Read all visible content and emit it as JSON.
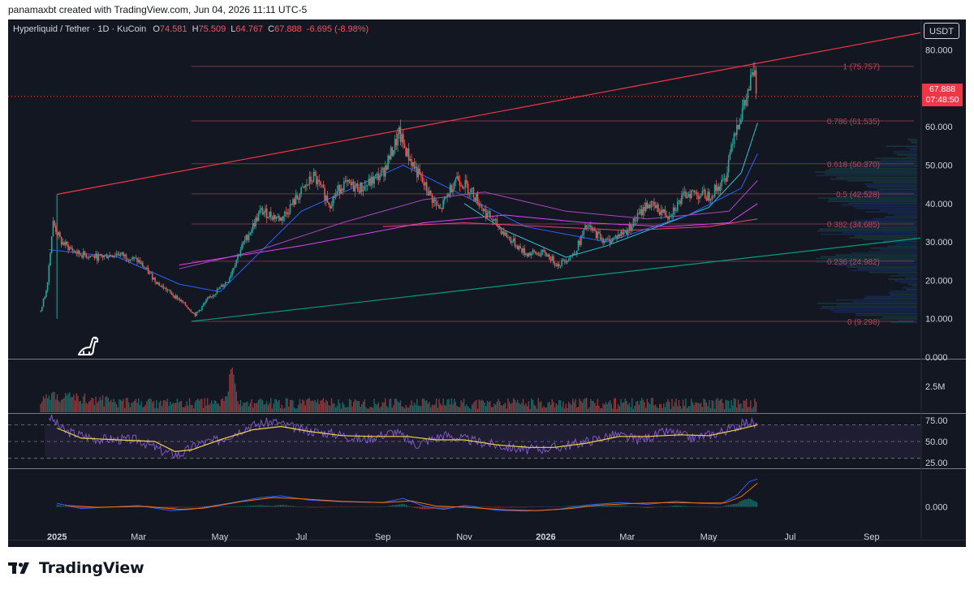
{
  "header": {
    "attribution": "panamaxbt created with TradingView.com, Jun 04, 2026 11:11 UTC-5"
  },
  "legend": {
    "symbol": "Hyperliquid / Tether · 1D · KuCoin",
    "o_label": "O",
    "o": "74.581",
    "h_label": "H",
    "h": "75.509",
    "l_label": "L",
    "l": "64.767",
    "c_label": "C",
    "c": "67.888",
    "change": "-6.695 (-8.98%)"
  },
  "currency": "USDT",
  "last_price": {
    "price": "67.888",
    "countdown": "07:48:50"
  },
  "footer": {
    "brand": "TradingView"
  },
  "colors": {
    "background": "#131722",
    "up": "#26a69a",
    "down": "#ef5350",
    "resistance_line": "#f23645",
    "support_line": "#089981",
    "fib_line": "#7a3345",
    "rsi": "#7e57c2",
    "rsi_ma": "#f0d34a",
    "macd": "#2962ff",
    "macd_signal": "#ff6d00"
  },
  "chart_data": [
    {
      "type": "candlestick",
      "panel": "price",
      "title": "Hyperliquid / Tether · 1D · KuCoin",
      "y_ticks": [
        "0.000",
        "10.000",
        "20.000",
        "30.000",
        "40.000",
        "50.000",
        "60.000",
        "70.000",
        "80.000"
      ],
      "ylim": [
        0,
        85
      ],
      "x_ticks": [
        "2025",
        "Mar",
        "May",
        "Jul",
        "Sep",
        "Nov",
        "2026",
        "Mar",
        "May",
        "Jul",
        "Sep"
      ],
      "x_tick_months": [
        0,
        2,
        4,
        6,
        8,
        10,
        12,
        14,
        16,
        18,
        20
      ],
      "xlim_months": [
        -1.2,
        21.2
      ],
      "grid": false,
      "price_path": [
        [
          -0.4,
          12
        ],
        [
          -0.25,
          18
        ],
        [
          -0.1,
          35
        ],
        [
          0.1,
          30
        ],
        [
          0.5,
          27
        ],
        [
          1.0,
          26
        ],
        [
          1.5,
          27
        ],
        [
          2.0,
          25
        ],
        [
          2.5,
          19
        ],
        [
          3.0,
          15
        ],
        [
          3.4,
          11
        ],
        [
          3.7,
          15
        ],
        [
          4.2,
          20
        ],
        [
          4.5,
          28
        ],
        [
          5.0,
          38
        ],
        [
          5.5,
          36
        ],
        [
          6.0,
          43
        ],
        [
          6.3,
          47
        ],
        [
          6.7,
          40
        ],
        [
          7.0,
          45
        ],
        [
          7.5,
          44
        ],
        [
          8.0,
          48
        ],
        [
          8.4,
          58
        ],
        [
          8.6,
          53
        ],
        [
          9.0,
          45
        ],
        [
          9.4,
          38
        ],
        [
          9.8,
          47
        ],
        [
          10.2,
          43
        ],
        [
          10.5,
          38
        ],
        [
          11.0,
          32
        ],
        [
          11.5,
          27
        ],
        [
          12.0,
          27
        ],
        [
          12.3,
          24
        ],
        [
          12.7,
          27
        ],
        [
          13.0,
          34
        ],
        [
          13.5,
          30
        ],
        [
          14.0,
          33
        ],
        [
          14.5,
          40
        ],
        [
          15.0,
          37
        ],
        [
          15.5,
          43
        ],
        [
          16.0,
          42
        ],
        [
          16.4,
          46
        ],
        [
          16.6,
          58
        ],
        [
          16.9,
          66
        ],
        [
          17.1,
          74.58
        ],
        [
          17.2,
          67.888
        ]
      ],
      "resistance_line": {
        "from": [
          0.0,
          42.4
        ],
        "to": [
          21.2,
          84.5
        ]
      },
      "support_line": {
        "from": [
          3.3,
          9.3
        ],
        "to": [
          21.2,
          31.0
        ]
      },
      "fib_levels": [
        {
          "ratio": "0",
          "price": 9.298,
          "label": "0 (9.298)"
        },
        {
          "ratio": "0.236",
          "price": 24.982,
          "label": "0.236 (24.982)"
        },
        {
          "ratio": "0.382",
          "price": 34.685,
          "label": "0.382 (34.685)"
        },
        {
          "ratio": "0.5",
          "price": 42.528,
          "label": "0.5 (42.528)"
        },
        {
          "ratio": "0.618",
          "price": 50.37,
          "label": "0.618 (50.370)"
        },
        {
          "ratio": "0.786",
          "price": 61.535,
          "label": "0.786 (61.535)"
        },
        {
          "ratio": "1",
          "price": 75.757,
          "label": "1 (75.757)"
        }
      ],
      "moving_averages": [
        {
          "color": "#26c6da",
          "points": [
            [
              10.0,
              40
            ],
            [
              11.0,
              33
            ],
            [
              12.5,
              26
            ],
            [
              13.5,
              29
            ],
            [
              15.0,
              35
            ],
            [
              16.0,
              39
            ],
            [
              16.8,
              48
            ],
            [
              17.2,
              61
            ]
          ]
        },
        {
          "color": "#2962ff",
          "points": [
            [
              -0.2,
              28
            ],
            [
              1.5,
              26
            ],
            [
              3.0,
              19
            ],
            [
              4.0,
              17
            ],
            [
              6.0,
              38
            ],
            [
              8.5,
              50
            ],
            [
              10.0,
              42
            ],
            [
              11.5,
              34
            ],
            [
              13.5,
              30
            ],
            [
              15.5,
              37
            ],
            [
              16.8,
              44
            ],
            [
              17.2,
              53
            ]
          ]
        },
        {
          "color": "#ab47bc",
          "points": [
            [
              3.0,
              23
            ],
            [
              5.0,
              28
            ],
            [
              7.0,
              35
            ],
            [
              9.0,
              41
            ],
            [
              10.5,
              43
            ],
            [
              12.5,
              38
            ],
            [
              14.5,
              36
            ],
            [
              16.5,
              38
            ],
            [
              17.2,
              46
            ]
          ]
        },
        {
          "color": "#e040fb",
          "points": [
            [
              3.0,
              24
            ],
            [
              6.0,
              29
            ],
            [
              9.0,
              35
            ],
            [
              11.0,
              37
            ],
            [
              13.0,
              35
            ],
            [
              15.0,
              34
            ],
            [
              16.5,
              35
            ],
            [
              17.2,
              40
            ]
          ]
        },
        {
          "color": "#ec407a",
          "points": [
            [
              8.0,
              34
            ],
            [
              10.0,
              35
            ],
            [
              12.0,
              34
            ],
            [
              14.0,
              33
            ],
            [
              16.0,
              34
            ],
            [
              17.2,
              36
            ]
          ]
        }
      ],
      "volume_profile": {
        "range": [
          9,
          57
        ],
        "peak_prices": [
          13,
          25,
          33,
          41,
          48
        ]
      }
    },
    {
      "type": "bar",
      "panel": "volume",
      "y_ticks": [
        "2.5M"
      ],
      "note_peak_month": 4.3
    },
    {
      "type": "line",
      "panel": "rsi",
      "y_ticks": [
        "75.00",
        "50.00",
        "25.00"
      ],
      "ylim": [
        20,
        82
      ],
      "bands": [
        30,
        70
      ],
      "series": [
        {
          "points": [
            [
              -0.2,
              80
            ],
            [
              0.2,
              62
            ],
            [
              1.0,
              53
            ],
            [
              2.0,
              52
            ],
            [
              2.6,
              38
            ],
            [
              3.0,
              34
            ],
            [
              3.5,
              48
            ],
            [
              4.0,
              52
            ],
            [
              4.7,
              68
            ],
            [
              5.3,
              74
            ],
            [
              6.0,
              64
            ],
            [
              7.0,
              58
            ],
            [
              7.5,
              52
            ],
            [
              8.3,
              62
            ],
            [
              8.8,
              46
            ],
            [
              9.5,
              58
            ],
            [
              10.3,
              50
            ],
            [
              11.0,
              44
            ],
            [
              11.5,
              40
            ],
            [
              12.3,
              43
            ],
            [
              13.0,
              50
            ],
            [
              13.7,
              58
            ],
            [
              14.3,
              52
            ],
            [
              15.0,
              62
            ],
            [
              15.6,
              54
            ],
            [
              16.2,
              60
            ],
            [
              16.7,
              68
            ],
            [
              17.0,
              74
            ],
            [
              17.2,
              68
            ]
          ]
        },
        {
          "points": [
            [
              0.0,
              66
            ],
            [
              0.6,
              54
            ],
            [
              1.5,
              52
            ],
            [
              2.4,
              50
            ],
            [
              2.9,
              38
            ],
            [
              3.3,
              40
            ],
            [
              4.0,
              52
            ],
            [
              4.8,
              64
            ],
            [
              5.5,
              68
            ],
            [
              6.2,
              62
            ],
            [
              7.0,
              57
            ],
            [
              7.8,
              56
            ],
            [
              8.6,
              56
            ],
            [
              9.3,
              52
            ],
            [
              10.0,
              52
            ],
            [
              10.8,
              46
            ],
            [
              11.6,
              43
            ],
            [
              12.2,
              43
            ],
            [
              13.0,
              48
            ],
            [
              13.8,
              56
            ],
            [
              14.5,
              56
            ],
            [
              15.3,
              58
            ],
            [
              16.0,
              57
            ],
            [
              16.7,
              64
            ],
            [
              17.2,
              70
            ]
          ]
        }
      ]
    },
    {
      "type": "line",
      "panel": "macd",
      "y_ticks": [
        "0.000"
      ],
      "series": [
        {
          "points": [
            [
              0.0,
              0.8
            ],
            [
              0.6,
              -0.4
            ],
            [
              2.0,
              0.3
            ],
            [
              2.8,
              -0.9
            ],
            [
              3.3,
              -0.6
            ],
            [
              4.2,
              0.8
            ],
            [
              5.0,
              2.2
            ],
            [
              5.5,
              2.6
            ],
            [
              6.2,
              1.6
            ],
            [
              7.0,
              1.2
            ],
            [
              8.0,
              1.0
            ],
            [
              8.5,
              2.0
            ],
            [
              9.0,
              0.2
            ],
            [
              9.5,
              -0.6
            ],
            [
              10.0,
              0.3
            ],
            [
              10.8,
              -0.8
            ],
            [
              11.5,
              -1.0
            ],
            [
              12.3,
              -0.6
            ],
            [
              13.0,
              0.4
            ],
            [
              13.8,
              1.0
            ],
            [
              14.5,
              0.6
            ],
            [
              15.2,
              1.3
            ],
            [
              15.8,
              0.8
            ],
            [
              16.3,
              0.7
            ],
            [
              16.7,
              2.8
            ],
            [
              17.0,
              6.0
            ],
            [
              17.2,
              6.6
            ]
          ]
        },
        {
          "points": [
            [
              0.2,
              0.3
            ],
            [
              1.0,
              -0.1
            ],
            [
              2.2,
              0.1
            ],
            [
              3.0,
              -0.6
            ],
            [
              3.6,
              -0.3
            ],
            [
              4.5,
              1.2
            ],
            [
              5.3,
              2.2
            ],
            [
              6.0,
              1.9
            ],
            [
              7.0,
              1.3
            ],
            [
              8.0,
              1.0
            ],
            [
              8.7,
              1.4
            ],
            [
              9.3,
              0.2
            ],
            [
              10.0,
              -0.1
            ],
            [
              11.0,
              -0.7
            ],
            [
              11.8,
              -0.9
            ],
            [
              12.6,
              -0.4
            ],
            [
              13.3,
              0.4
            ],
            [
              14.2,
              0.8
            ],
            [
              15.0,
              1.0
            ],
            [
              15.8,
              0.9
            ],
            [
              16.4,
              0.9
            ],
            [
              16.8,
              2.4
            ],
            [
              17.2,
              5.6
            ]
          ]
        }
      ]
    }
  ]
}
